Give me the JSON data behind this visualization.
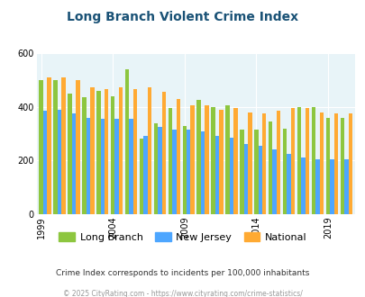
{
  "title": "Long Branch Violent Crime Index",
  "title_color": "#1a5276",
  "years": [
    1999,
    2000,
    2001,
    2002,
    2003,
    2004,
    2005,
    2006,
    2007,
    2008,
    2009,
    2010,
    2011,
    2012,
    2013,
    2014,
    2015,
    2016,
    2017,
    2018,
    2019,
    2020
  ],
  "long_branch": [
    500,
    500,
    450,
    435,
    460,
    440,
    540,
    280,
    340,
    395,
    330,
    425,
    400,
    405,
    315,
    315,
    345,
    320,
    400,
    400,
    360,
    360
  ],
  "new_jersey": [
    385,
    390,
    375,
    360,
    355,
    355,
    355,
    290,
    325,
    315,
    315,
    310,
    290,
    285,
    260,
    255,
    240,
    225,
    210,
    205,
    205,
    205
  ],
  "national": [
    510,
    510,
    500,
    475,
    465,
    475,
    465,
    475,
    455,
    430,
    405,
    405,
    390,
    395,
    380,
    375,
    385,
    395,
    395,
    380,
    375,
    375
  ],
  "legend_labels": [
    "Long Branch",
    "New Jersey",
    "National"
  ],
  "colors": [
    "#8dc63f",
    "#4da6ff",
    "#ffaa33"
  ],
  "plot_bg_color": "#e8f4f8",
  "ylim": [
    0,
    600
  ],
  "yticks": [
    0,
    200,
    400,
    600
  ],
  "xlabel_ticks": [
    1999,
    2004,
    2009,
    2014,
    2019
  ],
  "subtitle": "Crime Index corresponds to incidents per 100,000 inhabitants",
  "footer": "© 2025 CityRating.com - https://www.cityrating.com/crime-statistics/",
  "subtitle_color": "#333333",
  "footer_color": "#999999"
}
